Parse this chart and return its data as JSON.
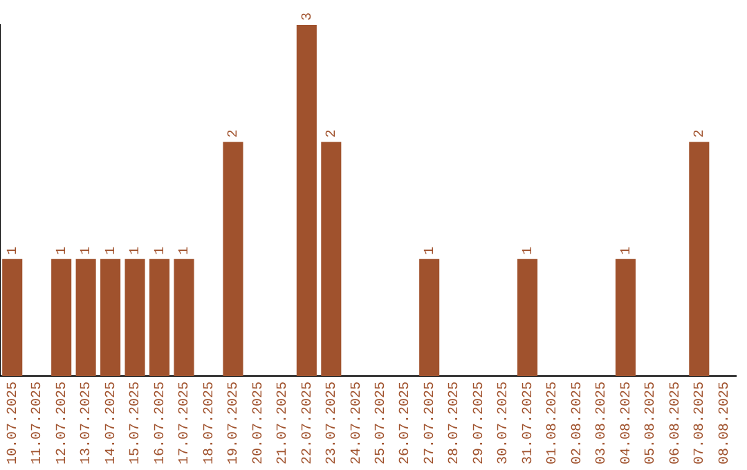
{
  "chart_data": {
    "type": "bar",
    "categories": [
      "10.07.2025",
      "11.07.2025",
      "12.07.2025",
      "13.07.2025",
      "14.07.2025",
      "15.07.2025",
      "16.07.2025",
      "17.07.2025",
      "18.07.2025",
      "19.07.2025",
      "20.07.2025",
      "21.07.2025",
      "22.07.2025",
      "23.07.2025",
      "24.07.2025",
      "25.07.2025",
      "26.07.2025",
      "27.07.2025",
      "28.07.2025",
      "29.07.2025",
      "30.07.2025",
      "31.07.2025",
      "01.08.2025",
      "02.08.2025",
      "03.08.2025",
      "04.08.2025",
      "05.08.2025",
      "06.08.2025",
      "07.08.2025",
      "08.08.2025"
    ],
    "values": [
      1,
      0,
      1,
      1,
      1,
      1,
      1,
      1,
      0,
      2,
      0,
      0,
      3,
      2,
      0,
      0,
      0,
      1,
      0,
      0,
      0,
      1,
      0,
      0,
      0,
      1,
      0,
      0,
      2,
      0
    ],
    "value_labels": [
      "1",
      null,
      "1",
      "1",
      "1",
      "1",
      "1",
      "1",
      null,
      "2",
      null,
      null,
      "3",
      "2",
      null,
      null,
      null,
      "1",
      null,
      null,
      null,
      "1",
      null,
      null,
      null,
      "1",
      null,
      null,
      "2",
      null
    ],
    "color": "#a0522d",
    "grid": false,
    "legend": false,
    "tick_labels": "x"
  }
}
